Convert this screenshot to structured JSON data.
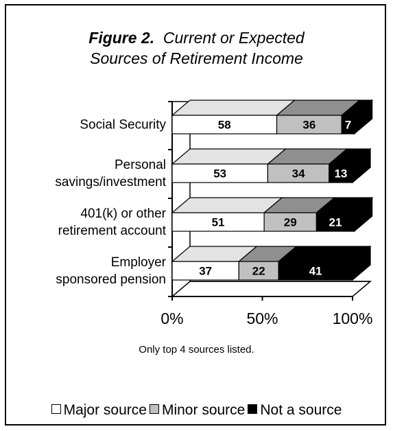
{
  "chart_data": {
    "type": "bar",
    "stacked": true,
    "orientation": "horizontal",
    "three_d": true,
    "title_prefix": "Figure 2.",
    "title": "Current or Expected Sources of Retirement Income",
    "categories": [
      "Social Security",
      "Personal savings/investment",
      "401(k) or other retirement account",
      "Employer sponsored pension"
    ],
    "category_lines": [
      [
        "Social Security"
      ],
      [
        "Personal",
        "savings/investment"
      ],
      [
        "401(k) or other",
        "retirement account"
      ],
      [
        "Employer",
        "sponsored pension"
      ]
    ],
    "series": [
      {
        "name": "Major source",
        "values": [
          58,
          53,
          51,
          37
        ],
        "color": "#ffffff",
        "top_color": "#e3e3e3",
        "side_color": "#e3e3e3",
        "text_color": "#000000"
      },
      {
        "name": "Minor source",
        "values": [
          36,
          34,
          29,
          22
        ],
        "color": "#c0c0c0",
        "top_color": "#8f8f8f",
        "side_color": "#8f8f8f",
        "text_color": "#000000"
      },
      {
        "name": "Not a source",
        "values": [
          7,
          13,
          21,
          41
        ],
        "color": "#000000",
        "top_color": "#000000",
        "side_color": "#000000",
        "text_color": "#ffffff"
      }
    ],
    "xlim": [
      0,
      100
    ],
    "xticks": [
      "0%",
      "50%",
      "100%"
    ],
    "legend_position": "bottom",
    "note": "Only top 4 sources listed."
  }
}
